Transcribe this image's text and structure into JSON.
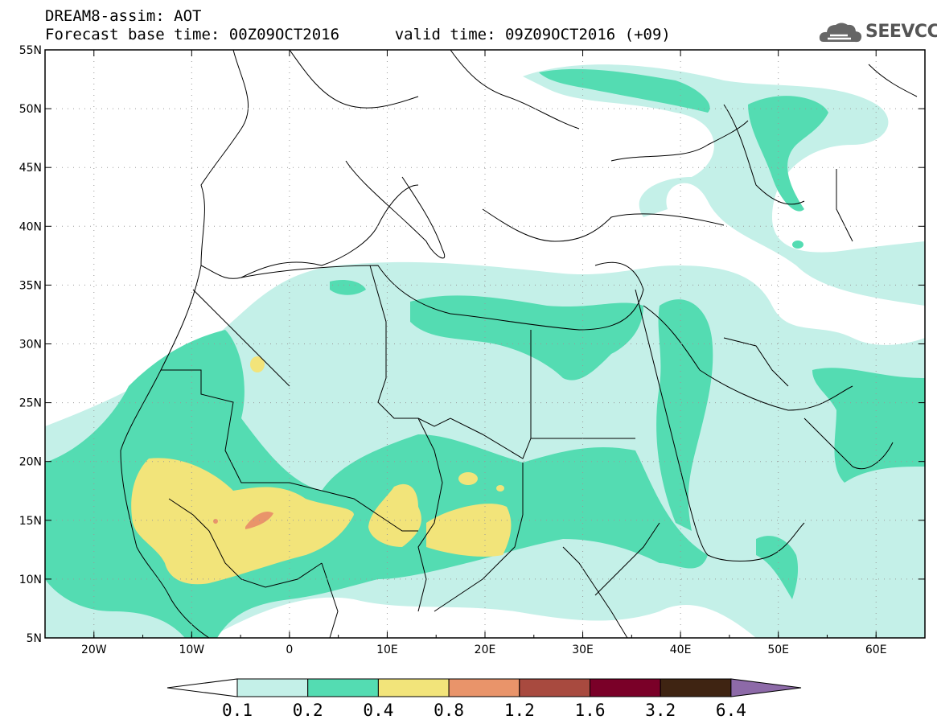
{
  "header": {
    "model_title": "DREAM8-assim: AOT",
    "base_time_line": "Forecast base time: 00Z09OCT2016",
    "valid_time_line": "valid time: 09Z09OCT2016 (+09)"
  },
  "logo": {
    "text": "SEEVCCC",
    "icon": "cloud-logo-icon"
  },
  "map": {
    "lon_range": [
      -25,
      65
    ],
    "lat_range": [
      5,
      55
    ],
    "lat_ticks": [
      "55N",
      "50N",
      "45N",
      "40N",
      "35N",
      "30N",
      "25N",
      "20N",
      "15N",
      "10N",
      "5N"
    ],
    "lon_ticks": [
      "20W",
      "10W",
      "0",
      "10E",
      "20E",
      "30E",
      "40E",
      "50E",
      "60E"
    ],
    "grid": "dotted"
  },
  "colorbar": {
    "labels": [
      "0.1",
      "0.2",
      "0.4",
      "0.8",
      "1.2",
      "1.6",
      "3.2",
      "6.4"
    ],
    "colors": [
      "#ffffff",
      "#c4f0e8",
      "#54dcb2",
      "#f2e47a",
      "#e9946a",
      "#a84a3f",
      "#7a0028",
      "#3f2412",
      "#8d6aa8"
    ]
  }
}
